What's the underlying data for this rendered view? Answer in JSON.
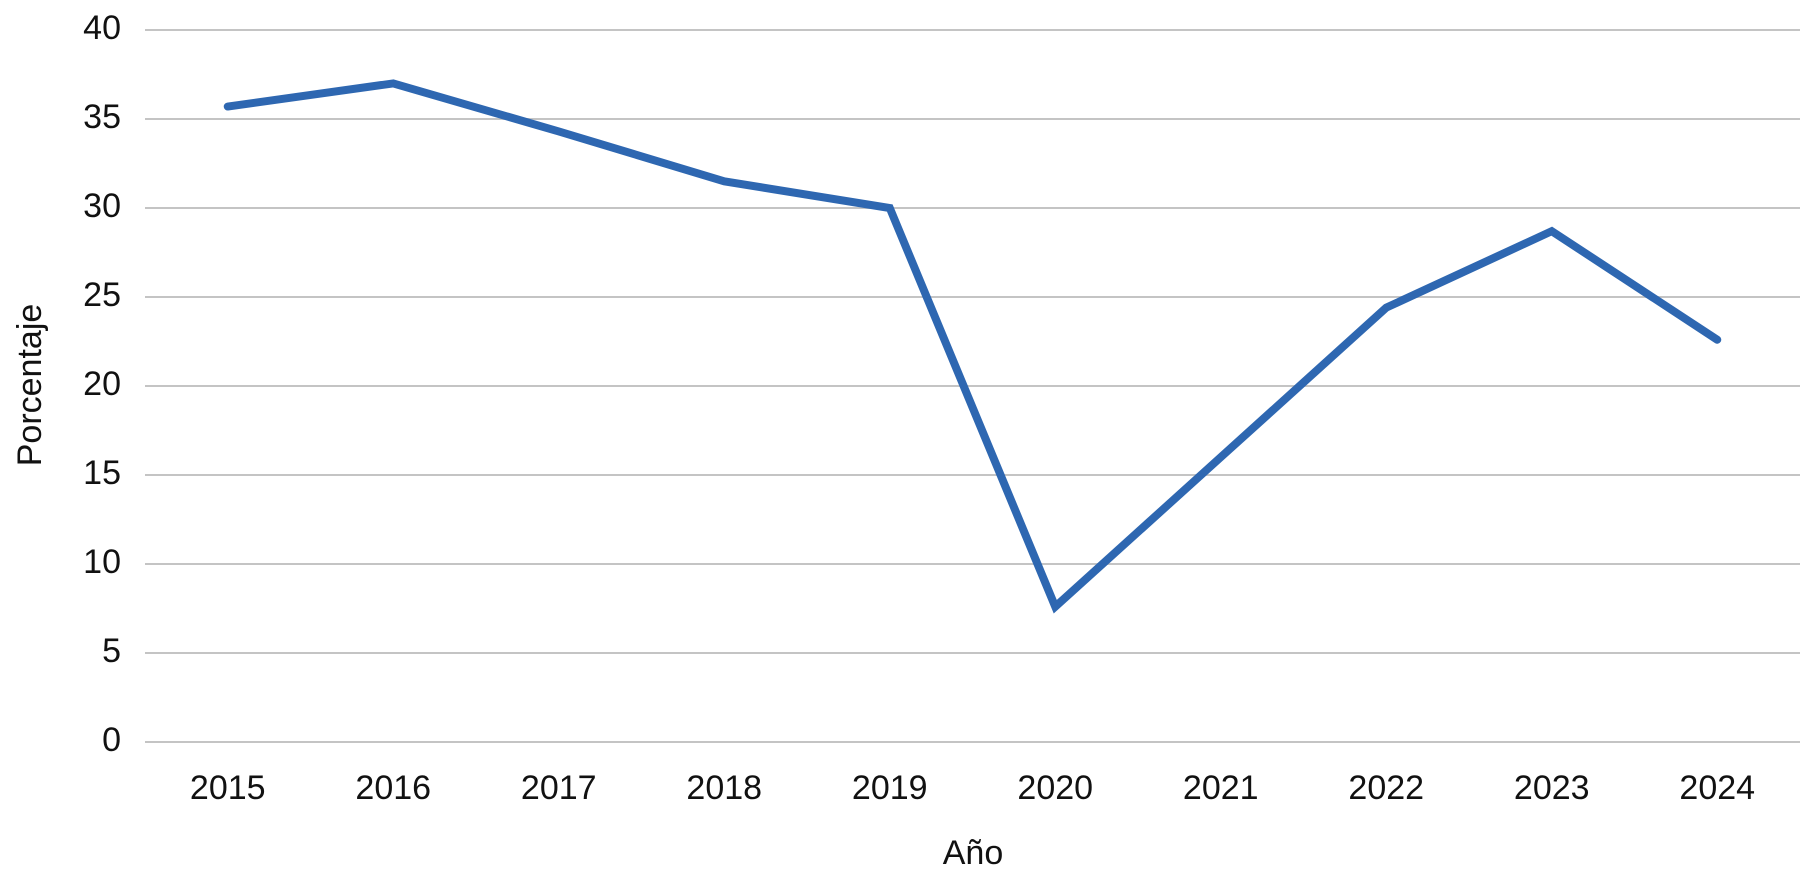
{
  "chart_data": {
    "type": "line",
    "x_label": "Año",
    "y_label": "Porcentaje",
    "categories": [
      "2015",
      "2016",
      "2017",
      "2018",
      "2019",
      "2020",
      "2021",
      "2022",
      "2023",
      "2024"
    ],
    "series": [
      {
        "name": "Porcentaje",
        "color": "#2e67b1",
        "values": [
          35.7,
          37.0,
          34.3,
          31.5,
          30.0,
          7.6,
          16.0,
          24.4,
          28.7,
          22.6
        ]
      }
    ],
    "ylim": [
      0,
      40
    ],
    "yticks": [
      0,
      5,
      10,
      15,
      20,
      25,
      30,
      35,
      40
    ],
    "grid": true
  }
}
